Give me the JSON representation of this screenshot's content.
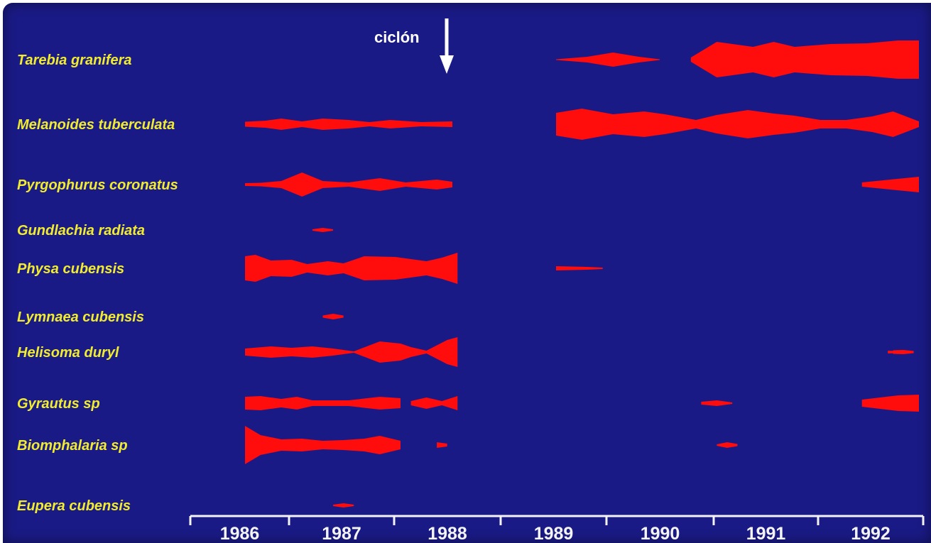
{
  "chart_data": {
    "type": "area",
    "title": "",
    "xlabel": "",
    "ylabel": "",
    "annotation": {
      "label": "ciclón",
      "time": 1988.0
    },
    "xlim": [
      1985.85,
      1992.85
    ],
    "x_ticks": [
      "1986",
      "1987",
      "1988",
      "1989",
      "1990",
      "1991",
      "1992"
    ],
    "colors": {
      "background": "#1a1a86",
      "fill": "#ff0c0c",
      "label": "#f2ec2e",
      "axis": "#f4f4f4"
    },
    "series": [
      {
        "name": "Tarebia granifera",
        "segments": [
          [
            [
              1989.0,
              1
            ],
            [
              1989.3,
              8
            ],
            [
              1989.55,
              20
            ],
            [
              1989.8,
              8
            ],
            [
              1990.0,
              1
            ]
          ],
          [
            [
              1990.3,
              6
            ],
            [
              1990.55,
              50
            ],
            [
              1990.9,
              36
            ],
            [
              1991.1,
              50
            ],
            [
              1991.3,
              36
            ],
            [
              1991.65,
              44
            ],
            [
              1992.0,
              46
            ],
            [
              1992.3,
              54
            ],
            [
              1992.5,
              54
            ]
          ]
        ]
      },
      {
        "name": "Melanoides tuberculata",
        "segments": [
          [
            [
              1986.0,
              7
            ],
            [
              1986.2,
              10
            ],
            [
              1986.35,
              16
            ],
            [
              1986.55,
              8
            ],
            [
              1986.75,
              16
            ],
            [
              1987.0,
              12
            ],
            [
              1987.2,
              6
            ],
            [
              1987.4,
              12
            ],
            [
              1987.7,
              6
            ],
            [
              1988.0,
              8
            ]
          ],
          [
            [
              1989.0,
              32
            ],
            [
              1989.25,
              44
            ],
            [
              1989.55,
              28
            ],
            [
              1989.85,
              36
            ],
            [
              1990.05,
              28
            ],
            [
              1990.35,
              12
            ],
            [
              1990.55,
              26
            ],
            [
              1990.85,
              40
            ],
            [
              1991.1,
              30
            ],
            [
              1991.3,
              24
            ],
            [
              1991.55,
              12
            ],
            [
              1991.8,
              12
            ],
            [
              1992.05,
              22
            ],
            [
              1992.25,
              36
            ],
            [
              1992.5,
              8
            ]
          ]
        ]
      },
      {
        "name": "Pyrgophurus coronatus",
        "segments": [
          [
            [
              1986.0,
              4
            ],
            [
              1986.15,
              5
            ],
            [
              1986.35,
              10
            ],
            [
              1986.55,
              34
            ],
            [
              1986.75,
              10
            ],
            [
              1987.0,
              6
            ],
            [
              1987.3,
              18
            ],
            [
              1987.55,
              6
            ],
            [
              1987.85,
              14
            ],
            [
              1988.0,
              8
            ]
          ],
          [
            [
              1991.95,
              6
            ],
            [
              1992.5,
              22
            ]
          ]
        ]
      },
      {
        "name": "Gundlachia radiata",
        "segments": [
          [
            [
              1986.65,
              2
            ],
            [
              1986.75,
              6
            ],
            [
              1986.85,
              2
            ]
          ]
        ]
      },
      {
        "name": "Physa cubensis",
        "segments": [
          [
            [
              1986.0,
              34
            ],
            [
              1986.1,
              38
            ],
            [
              1986.25,
              22
            ],
            [
              1986.45,
              24
            ],
            [
              1986.6,
              12
            ],
            [
              1986.8,
              20
            ],
            [
              1986.95,
              14
            ],
            [
              1987.15,
              34
            ],
            [
              1987.45,
              32
            ],
            [
              1987.75,
              20
            ],
            [
              1987.9,
              30
            ],
            [
              1988.05,
              44
            ]
          ],
          [
            [
              1989.0,
              6
            ],
            [
              1989.3,
              4
            ],
            [
              1989.45,
              2
            ]
          ]
        ]
      },
      {
        "name": "Lymnaea cubensis",
        "segments": [
          [
            [
              1986.75,
              3
            ],
            [
              1986.85,
              8
            ],
            [
              1986.95,
              3
            ]
          ]
        ]
      },
      {
        "name": "Helisoma duryl",
        "segments": [
          [
            [
              1986.0,
              10
            ],
            [
              1986.25,
              16
            ],
            [
              1986.45,
              12
            ],
            [
              1986.65,
              16
            ],
            [
              1986.85,
              10
            ],
            [
              1987.05,
              2
            ],
            [
              1987.3,
              30
            ],
            [
              1987.5,
              24
            ],
            [
              1987.6,
              14
            ],
            [
              1987.75,
              4
            ],
            [
              1987.95,
              34
            ],
            [
              1988.05,
              42
            ]
          ],
          [
            [
              1992.2,
              4
            ],
            [
              1992.35,
              2
            ]
          ],
          [
            [
              1992.25,
              5
            ],
            [
              1992.35,
              6
            ],
            [
              1992.45,
              3
            ]
          ]
        ]
      },
      {
        "name": "Gyrautus  sp",
        "segments": [
          [
            [
              1986.0,
              18
            ],
            [
              1986.15,
              20
            ],
            [
              1986.35,
              12
            ],
            [
              1986.5,
              18
            ],
            [
              1986.65,
              8
            ],
            [
              1987.0,
              8
            ],
            [
              1987.3,
              18
            ],
            [
              1987.5,
              14
            ]
          ],
          [
            [
              1987.6,
              6
            ],
            [
              1987.75,
              16
            ],
            [
              1987.9,
              6
            ],
            [
              1988.05,
              20
            ]
          ],
          [
            [
              1990.4,
              4
            ],
            [
              1990.55,
              8
            ],
            [
              1990.7,
              2
            ]
          ],
          [
            [
              1991.95,
              10
            ],
            [
              1992.3,
              22
            ],
            [
              1992.5,
              24
            ]
          ]
        ]
      },
      {
        "name": "Biomphalaria sp",
        "segments": [
          [
            [
              1986.0,
              54
            ],
            [
              1986.15,
              28
            ],
            [
              1986.35,
              16
            ],
            [
              1986.55,
              18
            ],
            [
              1986.75,
              12
            ],
            [
              1986.95,
              14
            ],
            [
              1987.15,
              18
            ],
            [
              1987.3,
              26
            ],
            [
              1987.5,
              12
            ]
          ],
          [
            [
              1987.85,
              8
            ],
            [
              1987.95,
              4
            ]
          ],
          [
            [
              1990.55,
              2
            ],
            [
              1990.65,
              8
            ],
            [
              1990.75,
              3
            ]
          ]
        ]
      },
      {
        "name": "Eupera cubensis",
        "segments": [
          [
            [
              1986.85,
              2
            ],
            [
              1986.95,
              6
            ],
            [
              1987.05,
              2
            ]
          ]
        ]
      }
    ]
  }
}
